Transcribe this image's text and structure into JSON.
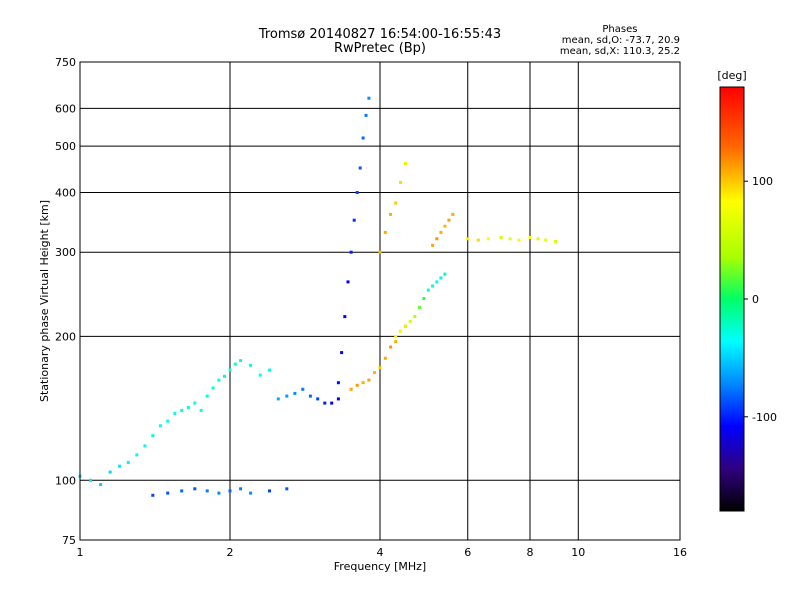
{
  "header": {
    "title_line1": "Tromsø 20140827 16:54:00-16:55:43",
    "title_line2": "RwPretec (Bp)"
  },
  "phases": {
    "title": "Phases",
    "line_o": "mean, sd,O: -73.7, 20.9",
    "line_x": "mean, sd,X: 110.3, 25.2"
  },
  "chart_data": {
    "type": "scatter",
    "title": "Tromsø 20140827 16:54:00-16:55:43",
    "subtitle": "RwPretec (Bp)",
    "xlabel": "Frequency [MHz]",
    "ylabel": "Stationary phase Virtual Height [km]",
    "x_scale": "log",
    "y_scale": "log",
    "xlim": [
      1,
      16
    ],
    "ylim": [
      75,
      750
    ],
    "x_ticks": [
      1,
      2,
      4,
      6,
      8,
      10,
      16
    ],
    "y_ticks": [
      75,
      100,
      200,
      300,
      400,
      500,
      600,
      750
    ],
    "grid": true,
    "colorbar": {
      "label": "[deg]",
      "range": [
        -180,
        180
      ],
      "ticks": [
        100,
        0,
        -100
      ]
    },
    "series": [
      {
        "x": [
          1.0,
          1.05,
          1.1,
          1.15,
          1.2,
          1.25,
          1.3,
          1.35,
          1.4,
          1.45,
          1.5,
          1.55,
          1.6,
          1.65,
          1.7,
          1.75,
          1.8,
          1.85,
          1.9,
          1.95,
          2.0,
          2.05,
          2.1,
          2.2,
          2.3,
          2.4
        ],
        "y": [
          102,
          100,
          98,
          104,
          107,
          109,
          113,
          118,
          124,
          130,
          133,
          138,
          140,
          142,
          145,
          140,
          150,
          156,
          162,
          165,
          170,
          175,
          178,
          174,
          166,
          170
        ],
        "phase": [
          -40,
          -45,
          -50,
          -48,
          -42,
          -40,
          -38,
          -35,
          -30,
          -35,
          -30,
          -32,
          -28,
          -30,
          -35,
          -30,
          -32,
          -28,
          -30,
          -25,
          -30,
          -28,
          -26,
          -30,
          -34,
          -30
        ]
      },
      {
        "x": [
          1.4,
          1.5,
          1.6,
          1.7,
          1.8,
          1.9,
          2.0,
          2.1,
          2.2,
          2.4,
          2.6
        ],
        "y": [
          93,
          94,
          95,
          96,
          95,
          94,
          95,
          96,
          94,
          95,
          96
        ],
        "phase": [
          -90,
          -85,
          -80,
          -85,
          -75,
          -70,
          -80,
          -75,
          -70,
          -90,
          -85
        ]
      },
      {
        "x": [
          2.5,
          2.6,
          2.7,
          2.8,
          2.9,
          3.0,
          3.1,
          3.2,
          3.3
        ],
        "y": [
          148,
          150,
          152,
          155,
          150,
          148,
          145,
          145,
          148
        ],
        "phase": [
          -60,
          -65,
          -70,
          -75,
          -80,
          -90,
          -100,
          -110,
          -115
        ]
      },
      {
        "x": [
          3.3,
          3.35,
          3.4,
          3.45,
          3.5,
          3.55,
          3.6,
          3.65,
          3.7,
          3.75,
          3.8
        ],
        "y": [
          160,
          185,
          220,
          260,
          300,
          350,
          400,
          450,
          520,
          580,
          630
        ],
        "phase": [
          -105,
          -108,
          -110,
          -112,
          -100,
          -95,
          -90,
          -85,
          -80,
          -75,
          -70
        ]
      },
      {
        "x": [
          3.5,
          3.6,
          3.7,
          3.8,
          3.9,
          4.0,
          4.1,
          4.2,
          4.3,
          4.4,
          4.5
        ],
        "y": [
          155,
          158,
          160,
          162,
          168,
          172,
          180,
          190,
          195,
          205,
          210
        ],
        "phase": [
          110,
          115,
          108,
          112,
          105,
          100,
          110,
          115,
          108,
          105,
          110
        ]
      },
      {
        "x": [
          4.0,
          4.1,
          4.2,
          4.3,
          4.4,
          4.5
        ],
        "y": [
          300,
          330,
          360,
          380,
          420,
          460
        ],
        "phase": [
          105,
          110,
          108,
          100,
          95,
          90
        ]
      },
      {
        "x": [
          4.3,
          4.4,
          4.5,
          4.6,
          4.7,
          4.8,
          4.9,
          5.0,
          5.1,
          5.2,
          5.3,
          5.4
        ],
        "y": [
          200,
          205,
          210,
          215,
          220,
          230,
          240,
          250,
          255,
          260,
          265,
          270
        ],
        "phase": [
          80,
          85,
          90,
          60,
          40,
          20,
          10,
          -30,
          -25,
          -35,
          -40,
          -20
        ]
      },
      {
        "x": [
          5.1,
          5.2,
          5.3,
          5.4,
          5.5,
          5.6
        ],
        "y": [
          310,
          320,
          330,
          340,
          350,
          360
        ],
        "phase": [
          110,
          115,
          108,
          105,
          112,
          110
        ]
      },
      {
        "x": [
          6.0,
          6.3,
          6.6,
          7.0,
          7.3,
          7.6,
          8.0,
          8.3,
          8.6,
          9.0
        ],
        "y": [
          320,
          318,
          320,
          322,
          320,
          318,
          322,
          320,
          318,
          316
        ],
        "phase": [
          90,
          95,
          80,
          60,
          70,
          85,
          80,
          65,
          70,
          60
        ]
      }
    ]
  }
}
